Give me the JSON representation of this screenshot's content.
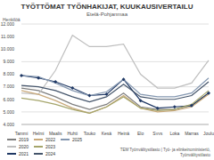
{
  "chart_data": {
    "type": "line",
    "title": "TYÖTTÖMAT TYÖNHAKIJAT, KUUKAUSIVERTAILU",
    "subtitle": "Etelä-Pohjanmaa",
    "y_label": "Henkilöä",
    "source": "TEM Työnvälitystilasto | Työ- ja elinkeinoministeriö, Työnvälitystilasto",
    "categories": [
      "Tammi",
      "Helmi",
      "Maalis",
      "Huhti",
      "Touko",
      "Kesä",
      "Heinä",
      "Elo",
      "Syys",
      "Loka",
      "Marras",
      "Joulu"
    ],
    "series": [
      {
        "name": "2019",
        "color": "#7f7f7f",
        "values": [
          6900,
          6700,
          6200,
          5600,
          5200,
          5600,
          6500,
          5400,
          5200,
          5200,
          5500,
          6500
        ]
      },
      {
        "name": "2020",
        "color": "#bfbfbf",
        "values": [
          6500,
          6400,
          8300,
          11100,
          10200,
          10200,
          10400,
          8000,
          6900,
          6900,
          7300,
          9100
        ]
      },
      {
        "name": "2021",
        "color": "#1f3864",
        "marker": "diamond",
        "values": [
          7900,
          7700,
          7400,
          6900,
          6300,
          6400,
          7600,
          5900,
          5300,
          5400,
          5500,
          6500
        ]
      },
      {
        "name": "2022",
        "color": "#c9a97a",
        "values": [
          6700,
          6400,
          5900,
          5300,
          4900,
          5400,
          6300,
          5300,
          5000,
          5100,
          5400,
          6400
        ]
      },
      {
        "name": "2023",
        "color": "#a5a56b",
        "values": [
          6100,
          5900,
          5600,
          5200,
          4900,
          5400,
          6200,
          5300,
          5100,
          5200,
          5600,
          6700
        ]
      },
      {
        "name": "2024",
        "color": "#44546a",
        "values": [
          7100,
          7000,
          6700,
          6200,
          5800,
          6200,
          7200,
          6200,
          6000,
          6000,
          6300,
          7400
        ]
      },
      {
        "name": "2025",
        "color": "#8497b0",
        "values": [
          7900,
          7800,
          7300,
          6700,
          6300,
          6600,
          7600,
          6400,
          6200,
          6200,
          6500,
          7700
        ]
      }
    ],
    "ylim": [
      4000,
      12000
    ],
    "yticks": [
      {
        "value": 4000,
        "label": "4.000"
      },
      {
        "value": 5000,
        "label": "5.000"
      },
      {
        "value": 6000,
        "label": "6.000"
      },
      {
        "value": 7000,
        "label": "7.000"
      },
      {
        "value": 8000,
        "label": "8.000"
      },
      {
        "value": 9000,
        "label": "9.000"
      },
      {
        "value": 10000,
        "label": "10.000"
      },
      {
        "value": 11000,
        "label": "11.000"
      },
      {
        "value": 12000,
        "label": "12.000"
      }
    ],
    "grid": true,
    "legend": "bottom"
  }
}
